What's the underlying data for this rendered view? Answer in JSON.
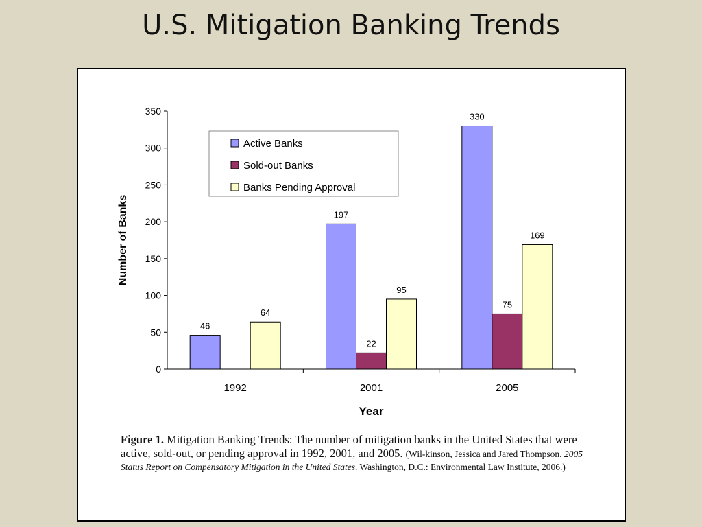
{
  "slide": {
    "title": "U.S. Mitigation Banking Trends"
  },
  "chart_data": {
    "type": "bar",
    "categories": [
      "1992",
      "2001",
      "2005"
    ],
    "series": [
      {
        "name": "Active Banks",
        "color": "#9999ff",
        "values": [
          46,
          197,
          330
        ],
        "labels": [
          "46",
          "197",
          "330"
        ]
      },
      {
        "name": "Sold-out Banks",
        "color": "#993366",
        "values": [
          null,
          22,
          75
        ],
        "labels": [
          "",
          "22",
          "75"
        ]
      },
      {
        "name": "Banks Pending Approval",
        "color": "#ffffcc",
        "values": [
          64,
          95,
          169
        ],
        "labels": [
          "64",
          "95",
          "169"
        ]
      }
    ],
    "xlabel": "Year",
    "ylabel": "Number of Banks",
    "ylim": [
      0,
      350
    ],
    "yticks": [
      0,
      50,
      100,
      150,
      200,
      250,
      300,
      350
    ],
    "grid": false,
    "legend": "top-left"
  },
  "caption": {
    "label": "Figure 1.",
    "text": " Mitigation Banking Trends: The number of mitigation banks in the United States that were active, sold-out, or pending approval in 1992, 2001, and 2005.",
    "ref_start": " (Wil-kinson, Jessica and Jared Thompson. ",
    "ref_title": "2005 Status Report on Compensatory Mitigation in the United States",
    "ref_end": ". Washington, D.C.: Environmental Law Institute, 2006.)"
  }
}
